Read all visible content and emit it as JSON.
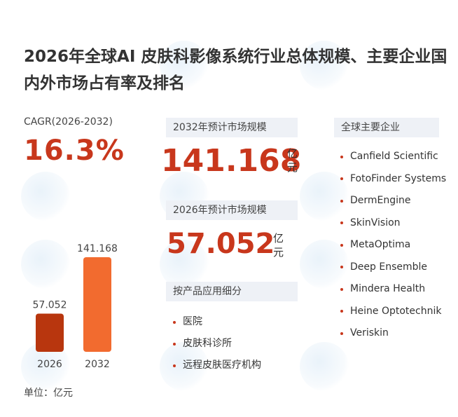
{
  "title": {
    "line1": "2026年全球AI 皮肤科影像系统行业总体规模、主要企业国",
    "line2": "内外市场占有率及排名"
  },
  "cagr": {
    "label": "CAGR(2026-2032)",
    "value": "16.3%"
  },
  "forecast_2032": {
    "label": "2032年预计市场规模",
    "value": "141.168",
    "unit": "亿元"
  },
  "forecast_2026": {
    "label": "2026年预计市场规模",
    "value": "57.052",
    "unit": "亿元"
  },
  "segments": {
    "label": "按产品应用细分",
    "items": [
      "医院",
      "皮肤科诊所",
      "远程皮肤医疗机构"
    ]
  },
  "companies": {
    "label": "全球主要企业",
    "items": [
      "Canfield Scientific",
      "FotoFinder Systems",
      "DermEngine",
      "SkinVision",
      "MetaOptima",
      "Deep Ensemble",
      "Mindera Health",
      "Heine Optotechnik",
      "Veriskin"
    ]
  },
  "unit_note": "单位：亿元",
  "colors": {
    "accent": "#c8371c",
    "bar_2026": "#b8360e",
    "bar_2032": "#f26b2f"
  },
  "chart_data": {
    "type": "bar",
    "categories": [
      "2026",
      "2032"
    ],
    "values": [
      57.052,
      141.168
    ],
    "value_labels": [
      "57.052",
      "141.168"
    ],
    "title": "",
    "xlabel": "",
    "ylabel": "",
    "ylim": [
      0,
      141.168
    ]
  }
}
